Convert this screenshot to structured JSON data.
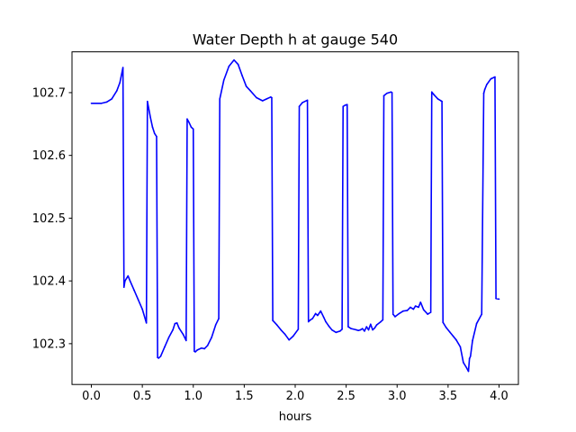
{
  "chart_data": {
    "type": "line",
    "title": "Water Depth h at gauge 540",
    "xlabel": "hours",
    "ylabel": "",
    "xlim": [
      -0.19,
      4.19
    ],
    "ylim": [
      102.235,
      102.765
    ],
    "grid": false,
    "legend": "none",
    "x_ticks": [
      0.0,
      0.5,
      1.0,
      1.5,
      2.0,
      2.5,
      3.0,
      3.5,
      4.0
    ],
    "x_tick_labels": [
      "0.0",
      "0.5",
      "1.0",
      "1.5",
      "2.0",
      "2.5",
      "3.0",
      "3.5",
      "4.0"
    ],
    "y_ticks": [
      102.3,
      102.4,
      102.5,
      102.6,
      102.7
    ],
    "y_tick_labels": [
      "102.3",
      "102.4",
      "102.5",
      "102.6",
      "102.7"
    ],
    "colors": {
      "series": "#0000ff",
      "axes": "#000000",
      "background": "#ffffff"
    },
    "series": [
      {
        "x": [
          0.0,
          0.1,
          0.15,
          0.2,
          0.25,
          0.28,
          0.31,
          0.32,
          0.33,
          0.36,
          0.38,
          0.42,
          0.46,
          0.5,
          0.54,
          0.55,
          0.58,
          0.6,
          0.62,
          0.64,
          0.65,
          0.66,
          0.68,
          0.72,
          0.76,
          0.8,
          0.82,
          0.84,
          0.86,
          0.9,
          0.93,
          0.94,
          0.96,
          0.98,
          1.0,
          1.01,
          1.02,
          1.04,
          1.08,
          1.11,
          1.14,
          1.18,
          1.22,
          1.25,
          1.26,
          1.3,
          1.35,
          1.4,
          1.44,
          1.48,
          1.52,
          1.56,
          1.62,
          1.68,
          1.72,
          1.76,
          1.77,
          1.78,
          1.82,
          1.86,
          1.9,
          1.94,
          1.98,
          2.03,
          2.04,
          2.07,
          2.12,
          2.13,
          2.15,
          2.17,
          2.2,
          2.22,
          2.25,
          2.28,
          2.3,
          2.33,
          2.36,
          2.4,
          2.44,
          2.46,
          2.47,
          2.49,
          2.51,
          2.52,
          2.55,
          2.6,
          2.62,
          2.64,
          2.66,
          2.68,
          2.7,
          2.72,
          2.74,
          2.76,
          2.78,
          2.8,
          2.84,
          2.86,
          2.87,
          2.9,
          2.94,
          2.95,
          2.96,
          2.98,
          3.02,
          3.06,
          3.1,
          3.13,
          3.16,
          3.18,
          3.21,
          3.23,
          3.26,
          3.3,
          3.33,
          3.34,
          3.36,
          3.4,
          3.43,
          3.44,
          3.45,
          3.48,
          3.52,
          3.55,
          3.58,
          3.62,
          3.65,
          3.68,
          3.7,
          3.71,
          3.72,
          3.74,
          3.78,
          3.83,
          3.85,
          3.86,
          3.88,
          3.92,
          3.96,
          3.97,
          4.0
        ],
        "y": [
          102.683,
          102.683,
          102.685,
          102.69,
          102.703,
          102.716,
          102.74,
          102.39,
          102.4,
          102.408,
          102.4,
          102.385,
          102.37,
          102.355,
          102.333,
          102.686,
          102.66,
          102.645,
          102.635,
          102.63,
          102.278,
          102.277,
          102.28,
          102.295,
          102.31,
          102.322,
          102.332,
          102.333,
          102.325,
          102.315,
          102.305,
          102.658,
          102.652,
          102.645,
          102.642,
          102.288,
          102.287,
          102.29,
          102.293,
          102.292,
          102.297,
          102.31,
          102.33,
          102.34,
          102.69,
          102.72,
          102.742,
          102.752,
          102.745,
          102.727,
          102.71,
          102.703,
          102.692,
          102.687,
          102.69,
          102.693,
          102.692,
          102.337,
          102.33,
          102.322,
          102.315,
          102.306,
          102.312,
          102.323,
          102.678,
          102.684,
          102.688,
          102.335,
          102.338,
          102.34,
          102.348,
          102.345,
          102.352,
          102.342,
          102.335,
          102.328,
          102.322,
          102.318,
          102.32,
          102.323,
          102.678,
          102.68,
          102.681,
          102.327,
          102.324,
          102.322,
          102.321,
          102.322,
          102.324,
          102.32,
          102.327,
          102.322,
          102.331,
          102.322,
          102.325,
          102.33,
          102.335,
          102.338,
          102.695,
          102.699,
          102.701,
          102.7,
          102.347,
          102.343,
          102.348,
          102.352,
          102.353,
          102.358,
          102.355,
          102.36,
          102.358,
          102.366,
          102.354,
          102.347,
          102.35,
          102.701,
          102.697,
          102.69,
          102.687,
          102.686,
          102.334,
          102.326,
          102.318,
          102.312,
          102.306,
          102.295,
          102.27,
          102.262,
          102.256,
          102.276,
          102.28,
          102.305,
          102.332,
          102.347,
          102.699,
          102.705,
          102.713,
          102.722,
          102.725,
          102.372,
          102.371
        ]
      }
    ]
  }
}
